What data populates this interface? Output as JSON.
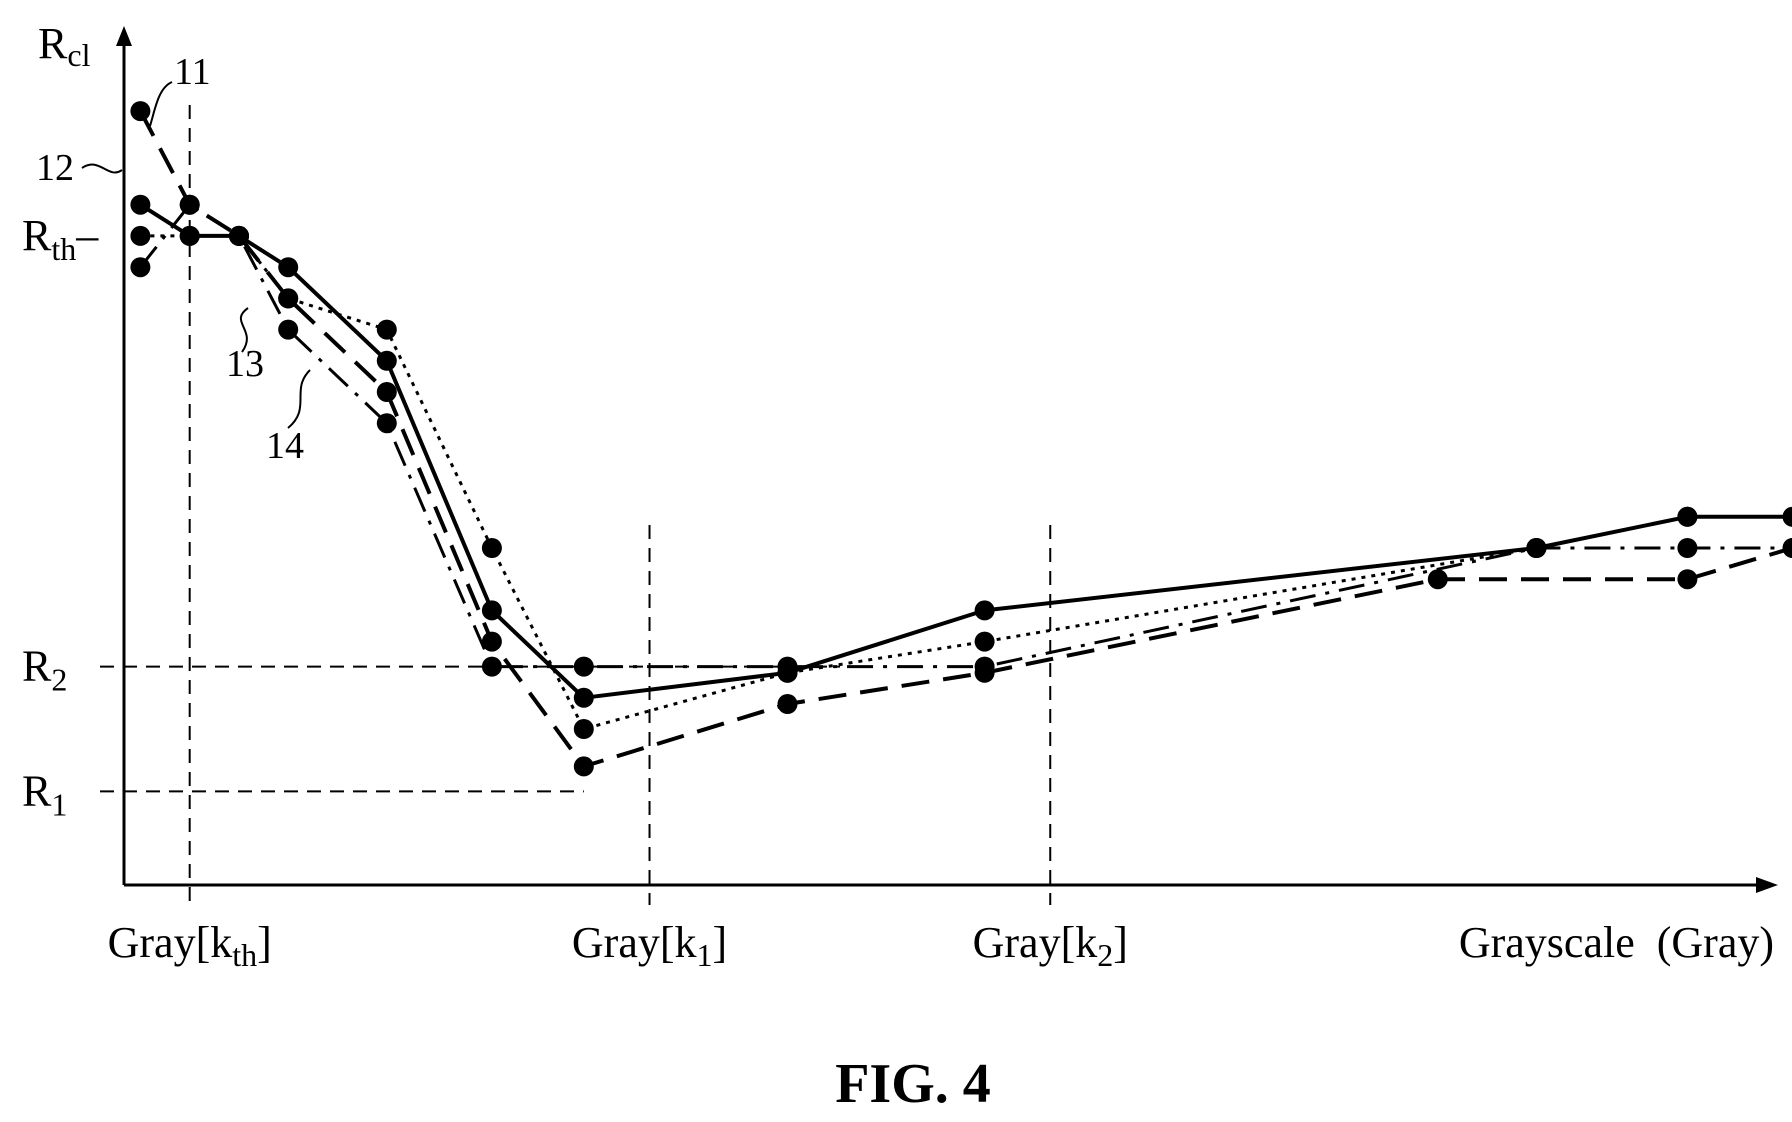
{
  "figure_label": "FIG. 4",
  "chart_data": {
    "type": "line",
    "y_axis": {
      "label": {
        "main": "R",
        "sub": "cl"
      }
    },
    "x_axis": {
      "label": "Grayscale  (Gray)"
    },
    "x_markers": [
      {
        "id": "kth",
        "main": "Gray[k",
        "sub": "th",
        "tail": "]",
        "x": 1.0
      },
      {
        "id": "k1",
        "main": "Gray[k",
        "sub": "1",
        "tail": "]",
        "x": 8.0
      },
      {
        "id": "k2",
        "main": "Gray[k",
        "sub": "2",
        "tail": "]",
        "x": 14.1
      }
    ],
    "y_markers": [
      {
        "id": "rth",
        "main": "R",
        "sub": "th",
        "tick": "–",
        "y": 10.0
      },
      {
        "id": "r2",
        "main": "R",
        "sub": "2",
        "y": 3.1
      },
      {
        "id": "r1",
        "main": "R",
        "sub": "1",
        "y": 1.1
      }
    ],
    "xlim": [
      0,
      24.6
    ],
    "ylim": [
      -0.4,
      13.3
    ],
    "series": [
      {
        "ref": "11",
        "style": "solid",
        "points": [
          [
            0.25,
            10.5
          ],
          [
            1.0,
            10.0
          ],
          [
            1.75,
            10.0
          ],
          [
            2.5,
            9.5
          ],
          [
            4.0,
            8.0
          ],
          [
            5.6,
            4.0
          ],
          [
            7.0,
            2.6
          ],
          [
            10.1,
            3.0
          ],
          [
            13.1,
            4.0
          ],
          [
            21.5,
            5.0
          ],
          [
            23.8,
            5.5
          ],
          [
            25.4,
            5.5
          ]
        ]
      },
      {
        "ref": "12",
        "style": "dashed",
        "points": [
          [
            0.25,
            12.0
          ],
          [
            1.0,
            10.5
          ],
          [
            1.75,
            10.0
          ],
          [
            2.5,
            9.0
          ],
          [
            4.0,
            7.5
          ],
          [
            5.6,
            3.5
          ],
          [
            7.0,
            1.5
          ],
          [
            10.1,
            2.5
          ],
          [
            13.1,
            3.0
          ],
          [
            20.0,
            4.5
          ],
          [
            23.8,
            4.5
          ],
          [
            25.4,
            5.0
          ]
        ]
      },
      {
        "ref": "13",
        "style": "dotted",
        "points": [
          [
            0.25,
            10.0
          ],
          [
            1.0,
            10.0
          ],
          [
            1.75,
            10.0
          ],
          [
            2.5,
            9.0
          ],
          [
            4.0,
            8.5
          ],
          [
            5.6,
            5.0
          ],
          [
            7.0,
            2.1
          ],
          [
            10.1,
            3.0
          ],
          [
            13.1,
            3.5
          ],
          [
            21.5,
            5.0
          ],
          [
            23.8,
            5.5
          ],
          [
            25.4,
            5.5
          ]
        ]
      },
      {
        "ref": "14",
        "style": "dash-dot",
        "points": [
          [
            0.25,
            9.5
          ],
          [
            1.0,
            10.5
          ],
          [
            1.75,
            10.0
          ],
          [
            2.5,
            8.5
          ],
          [
            4.0,
            7.0
          ],
          [
            5.6,
            3.1
          ],
          [
            7.0,
            3.1
          ],
          [
            10.1,
            3.1
          ],
          [
            13.1,
            3.1
          ],
          [
            21.5,
            5.0
          ],
          [
            23.8,
            5.0
          ],
          [
            25.4,
            5.0
          ]
        ]
      }
    ],
    "grid": false,
    "legend": "none"
  }
}
